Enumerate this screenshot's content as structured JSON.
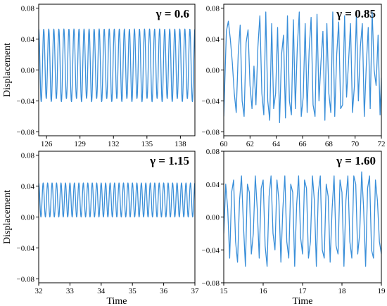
{
  "line_color": "#3a8fd9",
  "chart_data": [
    {
      "type": "line",
      "title": "γ = 0.6",
      "xlabel": "",
      "ylabel": "Displacement",
      "xlim": [
        125.3,
        139.3
      ],
      "ylim": [
        -0.085,
        0.085
      ],
      "xticks": [
        126,
        129,
        132,
        135,
        138
      ],
      "yticks": [
        -0.08,
        -0.04,
        0.0,
        0.04,
        0.08
      ],
      "ytick_labels": [
        "−0.08",
        "−0.04",
        "0.00",
        "0.04",
        "0.08"
      ],
      "series": [
        {
          "pattern": "periodic",
          "x_start": 125.3,
          "x_end": 139.3,
          "samples": 700,
          "cycles": 31,
          "max": 0.053,
          "min": -0.041,
          "min_alt": -0.037
        }
      ]
    },
    {
      "type": "line",
      "title": "γ = 0.85",
      "xlabel": "",
      "ylabel": "",
      "xlim": [
        60,
        72
      ],
      "ylim": [
        -0.085,
        0.085
      ],
      "xticks": [
        60,
        62,
        64,
        66,
        68,
        70,
        72
      ],
      "yticks": [
        -0.08,
        -0.04,
        0.0,
        0.04,
        0.08
      ],
      "ytick_labels": [
        "−0.08",
        "−0.04",
        "0.00",
        "0.04",
        "0.08"
      ],
      "series": [
        {
          "pattern": "points",
          "x": [
            60.0,
            60.2,
            60.35,
            60.5,
            60.65,
            60.8,
            60.95,
            61.1,
            61.25,
            61.4,
            61.55,
            61.7,
            61.85,
            62.0,
            62.15,
            62.3,
            62.45,
            62.6,
            62.75,
            62.9,
            63.05,
            63.2,
            63.35,
            63.5,
            63.65,
            63.8,
            63.95,
            64.1,
            64.25,
            64.4,
            64.55,
            64.7,
            64.85,
            65.0,
            65.15,
            65.3,
            65.45,
            65.6,
            65.75,
            65.9,
            66.05,
            66.2,
            66.35,
            66.5,
            66.65,
            66.8,
            66.95,
            67.1,
            67.25,
            67.4,
            67.55,
            67.7,
            67.85,
            68.0,
            68.15,
            68.3,
            68.45,
            68.6,
            68.75,
            68.9,
            69.05,
            69.2,
            69.35,
            69.5,
            69.65,
            69.8,
            69.95,
            70.1,
            70.25,
            70.4,
            70.55,
            70.7,
            70.85,
            71.0,
            71.15,
            71.3,
            71.45,
            71.6,
            71.75,
            71.9,
            72.0
          ],
          "y": [
            -0.06,
            0.05,
            0.063,
            0.04,
            0.01,
            -0.03,
            -0.055,
            0.02,
            0.058,
            -0.04,
            -0.06,
            0.035,
            0.052,
            -0.02,
            -0.05,
            0.005,
            -0.045,
            0.03,
            0.07,
            -0.03,
            -0.058,
            0.075,
            -0.04,
            -0.065,
            0.06,
            -0.05,
            -0.03,
            0.055,
            -0.068,
            0.02,
            0.045,
            -0.062,
            0.07,
            -0.04,
            -0.058,
            0.065,
            -0.05,
            0.03,
            0.075,
            -0.06,
            -0.035,
            0.06,
            -0.055,
            0.025,
            0.068,
            -0.045,
            -0.06,
            0.072,
            -0.04,
            0.01,
            0.05,
            -0.065,
            0.06,
            -0.03,
            -0.055,
            0.075,
            -0.06,
            0.02,
            0.062,
            -0.05,
            -0.045,
            0.07,
            -0.035,
            0.01,
            0.06,
            -0.055,
            -0.02,
            0.072,
            -0.04,
            0.03,
            0.06,
            -0.06,
            0.005,
            0.055,
            -0.05,
            0.075,
            0.0,
            -0.02,
            0.045,
            -0.058,
            -0.01
          ]
        }
      ]
    },
    {
      "type": "line",
      "title": "γ = 1.15",
      "xlabel": "Time",
      "ylabel": "Displacement",
      "xlim": [
        32,
        37
      ],
      "ylim": [
        -0.085,
        0.085
      ],
      "xticks": [
        32,
        33,
        34,
        35,
        36,
        37
      ],
      "yticks": [
        -0.08,
        -0.04,
        0.0,
        0.04,
        0.08
      ],
      "ytick_labels": [
        "−0.08",
        "−0.04",
        "0.00",
        "0.04",
        "0.08"
      ],
      "series": [
        {
          "pattern": "periodic",
          "x_start": 32,
          "x_end": 37,
          "samples": 700,
          "cycles": 35,
          "max": 0.044,
          "min": 0.0,
          "min_alt": 0.0
        }
      ]
    },
    {
      "type": "line",
      "title": "γ = 1.60",
      "xlabel": "Time",
      "ylabel": "",
      "xlim": [
        15,
        19
      ],
      "ylim": [
        -0.08,
        0.08
      ],
      "xticks": [
        15,
        16,
        17,
        18,
        19
      ],
      "yticks": [
        -0.08,
        -0.04,
        0.0,
        0.04,
        0.08
      ],
      "ytick_labels": [
        "−0.08",
        "−0.04",
        "0.00",
        "0.04",
        "0.08"
      ],
      "series": [
        {
          "pattern": "points",
          "x": [
            15.0,
            15.05,
            15.1,
            15.15,
            15.2,
            15.25,
            15.3,
            15.35,
            15.4,
            15.45,
            15.5,
            15.55,
            15.6,
            15.65,
            15.7,
            15.75,
            15.8,
            15.85,
            15.9,
            15.95,
            16.0,
            16.05,
            16.1,
            16.15,
            16.2,
            16.25,
            16.3,
            16.35,
            16.4,
            16.45,
            16.5,
            16.55,
            16.6,
            16.65,
            16.7,
            16.75,
            16.8,
            16.85,
            16.9,
            16.95,
            17.0,
            17.05,
            17.1,
            17.15,
            17.2,
            17.25,
            17.3,
            17.35,
            17.4,
            17.45,
            17.5,
            17.55,
            17.6,
            17.65,
            17.7,
            17.75,
            17.8,
            17.85,
            17.9,
            17.95,
            18.0,
            18.05,
            18.1,
            18.15,
            18.2,
            18.25,
            18.3,
            18.35,
            18.4,
            18.45,
            18.5,
            18.55,
            18.6,
            18.65,
            18.7,
            18.75,
            18.8,
            18.85,
            18.9,
            18.95,
            19.0
          ],
          "y": [
            -0.02,
            0.04,
            0.01,
            -0.05,
            0.03,
            0.045,
            -0.03,
            -0.055,
            0.02,
            0.05,
            -0.01,
            -0.06,
            0.04,
            0.03,
            -0.045,
            -0.02,
            0.05,
            0.01,
            -0.05,
            0.035,
            0.045,
            -0.035,
            -0.06,
            0.025,
            0.05,
            -0.02,
            -0.04,
            0.045,
            0.02,
            -0.055,
            0.01,
            0.05,
            -0.03,
            -0.05,
            0.04,
            0.03,
            -0.06,
            0.015,
            0.05,
            -0.025,
            -0.045,
            0.045,
            0.035,
            -0.05,
            -0.03,
            0.05,
            0.02,
            -0.06,
            0.03,
            0.05,
            -0.04,
            -0.05,
            0.04,
            0.025,
            -0.055,
            0.01,
            0.05,
            -0.035,
            -0.045,
            0.045,
            0.03,
            -0.06,
            0.02,
            0.05,
            -0.03,
            -0.05,
            0.05,
            0.04,
            -0.045,
            -0.02,
            0.055,
            0.01,
            -0.06,
            0.035,
            0.05,
            -0.04,
            -0.05,
            0.045,
            0.02,
            -0.03,
            -0.045
          ]
        }
      ]
    }
  ]
}
